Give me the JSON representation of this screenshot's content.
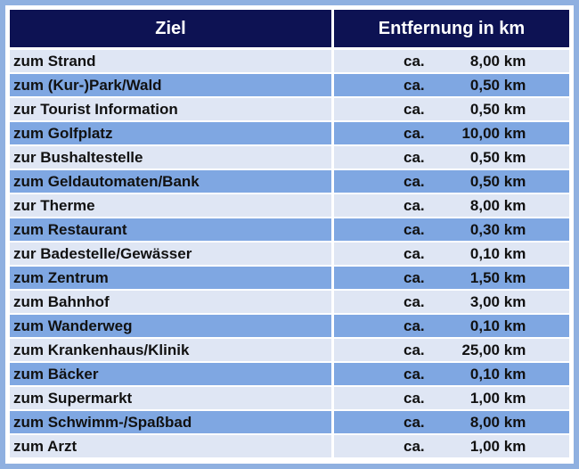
{
  "table": {
    "header": {
      "col1": "Ziel",
      "col2": "Entfernung in km"
    },
    "rows": [
      {
        "ziel": "zum Strand",
        "prefix": "ca.",
        "value": "8,00",
        "unit": "km"
      },
      {
        "ziel": "zum (Kur-)Park/Wald",
        "prefix": "ca.",
        "value": "0,50",
        "unit": "km"
      },
      {
        "ziel": "zur Tourist Information",
        "prefix": "ca.",
        "value": "0,50",
        "unit": "km"
      },
      {
        "ziel": "zum Golfplatz",
        "prefix": "ca.",
        "value": "10,00",
        "unit": "km"
      },
      {
        "ziel": "zur Bushaltestelle",
        "prefix": "ca.",
        "value": "0,50",
        "unit": "km"
      },
      {
        "ziel": "zum Geldautomaten/Bank",
        "prefix": "ca.",
        "value": "0,50",
        "unit": "km"
      },
      {
        "ziel": "zur Therme",
        "prefix": "ca.",
        "value": "8,00",
        "unit": "km"
      },
      {
        "ziel": "zum Restaurant",
        "prefix": "ca.",
        "value": "0,30",
        "unit": "km"
      },
      {
        "ziel": "zur Badestelle/Gewässer",
        "prefix": "ca.",
        "value": "0,10",
        "unit": "km"
      },
      {
        "ziel": "zum Zentrum",
        "prefix": "ca.",
        "value": "1,50",
        "unit": "km"
      },
      {
        "ziel": "zum Bahnhof",
        "prefix": "ca.",
        "value": "3,00",
        "unit": "km"
      },
      {
        "ziel": "zum Wanderweg",
        "prefix": "ca.",
        "value": "0,10",
        "unit": "km"
      },
      {
        "ziel": "zum Krankenhaus/Klinik",
        "prefix": "ca.",
        "value": "25,00",
        "unit": "km"
      },
      {
        "ziel": "zum Bäcker",
        "prefix": "ca.",
        "value": "0,10",
        "unit": "km"
      },
      {
        "ziel": "zum Supermarkt",
        "prefix": "ca.",
        "value": "1,00",
        "unit": "km"
      },
      {
        "ziel": "zum Schwimm-/Spaßbad",
        "prefix": "ca.",
        "value": "8,00",
        "unit": "km"
      },
      {
        "ziel": "zum Arzt",
        "prefix": "ca.",
        "value": "1,00",
        "unit": "km"
      }
    ]
  },
  "colors": {
    "header_bg": "#0d1253",
    "row_light": "#dfe6f4",
    "row_blue": "#7fa7e2",
    "page_bg": "#8fb0e0"
  }
}
